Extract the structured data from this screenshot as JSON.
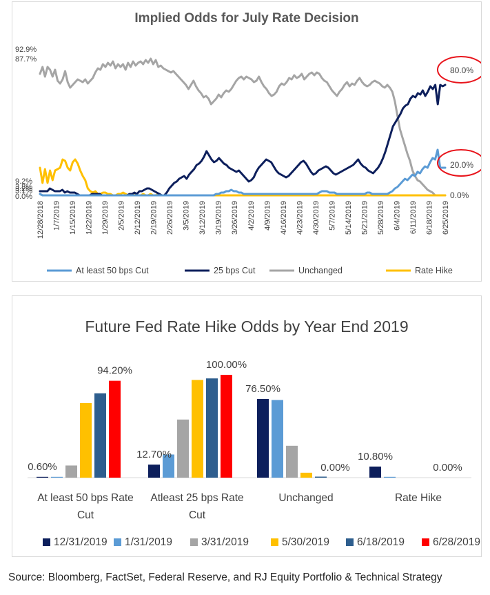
{
  "source": "Source: Bloomberg, FactSet, Federal Reserve, and RJ Equity Portfolio & Technical Strategy",
  "chart_data": [
    {
      "type": "line",
      "title": "Implied Odds for July Rate Decision",
      "xlabel": "",
      "ylabel": "",
      "ylim": [
        0,
        100
      ],
      "x_tick_labels": [
        "12/28/2018",
        "1/7/2019",
        "1/15/2019",
        "1/22/2019",
        "1/29/2019",
        "2/5/2019",
        "2/12/2019",
        "2/19/2019",
        "2/26/2019",
        "3/5/2019",
        "3/12/2019",
        "3/19/2019",
        "3/26/2019",
        "4/2/2019",
        "4/9/2019",
        "4/16/2019",
        "4/23/2019",
        "4/30/2019",
        "5/7/2019",
        "5/14/2019",
        "5/21/2019",
        "5/28/2019",
        "6/4/2019",
        "6/11/2019",
        "6/18/2019",
        "6/25/2019"
      ],
      "left_labels": [
        "92.9%",
        "87.7%",
        "9.2%",
        "3.8%",
        "3.2%",
        "3.1%",
        "0.0%"
      ],
      "right_labels": [
        "80.0%",
        "20.0%",
        "0.0%"
      ],
      "legend_position": "bottom",
      "colors": {
        "cut50": "#5b9bd5",
        "cut25": "#0d1f5c",
        "unchanged": "#a5a5a5",
        "hike": "#ffc000",
        "highlight": "#e8141b"
      },
      "series": [
        {
          "name": "At least 50 bps Cut",
          "values": [
            1,
            0,
            0,
            0,
            0,
            0,
            0,
            0,
            0,
            0,
            0,
            0,
            0,
            0,
            0,
            0,
            0,
            0,
            0,
            0,
            0,
            0,
            0,
            0,
            0,
            0,
            0,
            0,
            0,
            0,
            0,
            0,
            0,
            0,
            0,
            0,
            0,
            0,
            0,
            0,
            0,
            0,
            0,
            0,
            0,
            0,
            0,
            0,
            0,
            0,
            0,
            0,
            0,
            0,
            0,
            0,
            0,
            0,
            0,
            0,
            0,
            0,
            0,
            0,
            0,
            0,
            0,
            0,
            0,
            0,
            1,
            1,
            2,
            2,
            3,
            3,
            4,
            3,
            3,
            2,
            2,
            1,
            1,
            1,
            1,
            1,
            1,
            1,
            1,
            1,
            1,
            1,
            1,
            1,
            1,
            1,
            1,
            1,
            1,
            1,
            1,
            1,
            1,
            1,
            1,
            1,
            1,
            1,
            1,
            1,
            1,
            2,
            3,
            3,
            3,
            2,
            2,
            2,
            1,
            1,
            1,
            1,
            1,
            1,
            1,
            1,
            1,
            1,
            1,
            1,
            2,
            2,
            1,
            1,
            1,
            1,
            1,
            1,
            1,
            2,
            3,
            5,
            6,
            8,
            10,
            12,
            11,
            13,
            15,
            14,
            17,
            16,
            19,
            21,
            20,
            24,
            27,
            26,
            33,
            20,
            20,
            20
          ]
        },
        {
          "name": "25 bps Cut",
          "values": [
            3,
            3,
            3,
            3,
            5,
            4,
            3,
            3,
            3,
            4,
            2,
            3,
            2,
            2,
            2,
            1,
            0,
            0,
            0,
            0,
            0,
            1,
            1,
            1,
            1,
            0,
            0,
            0,
            0,
            0,
            0,
            0,
            0,
            0,
            0,
            0,
            1,
            1,
            2,
            1,
            3,
            3,
            4,
            5,
            5,
            4,
            3,
            2,
            1,
            0,
            0,
            2,
            5,
            7,
            9,
            10,
            12,
            13,
            14,
            12,
            15,
            17,
            19,
            22,
            23,
            25,
            28,
            32,
            29,
            26,
            24,
            25,
            27,
            25,
            23,
            22,
            20,
            19,
            18,
            17,
            18,
            16,
            14,
            12,
            10,
            11,
            13,
            17,
            20,
            22,
            24,
            26,
            25,
            24,
            21,
            18,
            16,
            15,
            14,
            13,
            14,
            16,
            18,
            20,
            22,
            24,
            25,
            23,
            20,
            17,
            15,
            16,
            18,
            19,
            20,
            21,
            20,
            18,
            16,
            15,
            16,
            17,
            18,
            19,
            20,
            21,
            22,
            24,
            26,
            23,
            21,
            20,
            18,
            17,
            16,
            18,
            20,
            23,
            27,
            32,
            38,
            44,
            50,
            53,
            56,
            59,
            63,
            65,
            66,
            70,
            72,
            71,
            74,
            73,
            76,
            72,
            75,
            79,
            77,
            80,
            66,
            80,
            79,
            80
          ]
        },
        {
          "name": "Unchanged",
          "values": [
            88,
            93,
            86,
            93,
            91,
            86,
            91,
            83,
            81,
            84,
            90,
            82,
            78,
            80,
            82,
            84,
            83,
            82,
            84,
            81,
            83,
            85,
            89,
            92,
            91,
            95,
            93,
            96,
            94,
            97,
            92,
            95,
            93,
            95,
            91,
            96,
            93,
            97,
            94,
            96,
            97,
            95,
            98,
            96,
            99,
            95,
            98,
            93,
            94,
            92,
            91,
            90,
            89,
            90,
            88,
            86,
            84,
            82,
            80,
            77,
            80,
            83,
            79,
            76,
            74,
            71,
            72,
            70,
            66,
            68,
            70,
            73,
            71,
            74,
            76,
            75,
            77,
            80,
            83,
            85,
            86,
            84,
            86,
            85,
            84,
            82,
            83,
            86,
            82,
            79,
            77,
            74,
            72,
            73,
            75,
            79,
            81,
            80,
            82,
            85,
            84,
            87,
            85,
            86,
            88,
            84,
            86,
            88,
            89,
            87,
            89,
            88,
            85,
            83,
            82,
            79,
            76,
            74,
            72,
            75,
            77,
            80,
            82,
            79,
            81,
            80,
            83,
            85,
            82,
            80,
            79,
            80,
            82,
            83,
            82,
            81,
            79,
            78,
            80,
            78,
            75,
            68,
            58,
            48,
            42,
            36,
            30,
            25,
            18,
            14,
            11,
            10,
            8,
            6,
            4,
            3,
            2,
            0,
            0,
            0,
            0,
            0
          ]
        },
        {
          "name": "Rate Hike",
          "values": [
            20,
            9,
            19,
            9,
            18,
            11,
            18,
            19,
            20,
            26,
            25,
            20,
            18,
            24,
            26,
            23,
            18,
            14,
            11,
            5,
            3,
            2,
            3,
            1,
            1,
            2,
            2,
            1,
            1,
            0,
            0,
            1,
            1,
            2,
            1,
            0,
            0,
            1,
            1,
            0,
            0,
            1,
            0,
            0,
            1,
            0,
            0,
            1,
            0,
            0,
            0,
            0,
            0,
            0,
            0,
            0,
            0,
            0,
            0,
            0,
            0,
            0,
            0,
            0,
            0,
            0,
            0,
            0,
            0,
            0,
            0,
            0,
            0,
            0,
            0,
            0,
            0,
            0,
            0,
            0,
            0,
            0,
            0,
            0,
            0,
            0,
            0,
            0,
            0,
            0,
            0,
            0,
            0,
            0,
            0,
            0,
            0,
            0,
            0,
            0,
            0,
            0,
            0,
            0,
            0,
            0,
            0,
            0,
            0,
            0,
            0,
            0,
            0,
            0,
            0,
            0,
            0,
            0,
            0,
            0,
            0,
            0,
            0,
            0,
            0,
            0,
            0,
            0,
            0,
            0,
            0,
            0,
            0,
            0,
            0,
            0,
            0,
            0,
            0,
            0,
            0,
            0,
            0,
            0,
            0,
            0,
            0,
            0,
            0,
            0,
            0,
            0,
            0,
            0,
            0,
            0,
            0,
            0,
            0,
            0,
            0,
            0
          ]
        }
      ]
    },
    {
      "type": "bar",
      "title": "Future Fed Rate Hike Odds by Year End 2019",
      "xlabel": "",
      "ylabel": "",
      "ylim": [
        0,
        100
      ],
      "legend_position": "bottom",
      "categories": [
        [
          "At least 50 bps Rate",
          "Cut"
        ],
        [
          "Atleast 25 bps Rate",
          "Cut"
        ],
        [
          "Unchanged"
        ],
        [
          "Rate Hike"
        ]
      ],
      "annotations": [
        {
          "text": "0.60%",
          "category": 0,
          "series": 0
        },
        {
          "text": "94.20%",
          "category": 0,
          "series": 5
        },
        {
          "text": "12.70%",
          "category": 1,
          "series": 0
        },
        {
          "text": "100.00%",
          "category": 1,
          "series": 5
        },
        {
          "text": "76.50%",
          "category": 2,
          "series": 0
        },
        {
          "text": "0.00%",
          "category": 2,
          "series": 5
        },
        {
          "text": "10.80%",
          "category": 3,
          "series": 0
        },
        {
          "text": "0.00%",
          "category": 3,
          "series": 5
        }
      ],
      "series": [
        {
          "name": "12/31/2019",
          "color": "#0d1f5c",
          "values": [
            0.6,
            12.7,
            76.5,
            10.8
          ]
        },
        {
          "name": "1/31/2019",
          "color": "#5b9bd5",
          "values": [
            0.6,
            22.5,
            75.5,
            0.8
          ]
        },
        {
          "name": "3/31/2019",
          "color": "#a5a5a5",
          "values": [
            11.8,
            56.5,
            31.0,
            0.0
          ]
        },
        {
          "name": "5/30/2019",
          "color": "#ffc000",
          "values": [
            72.5,
            95.0,
            4.8,
            0.0
          ]
        },
        {
          "name": "6/18/2019",
          "color": "#2e5e8e",
          "values": [
            82.0,
            96.5,
            1.0,
            0.0
          ]
        },
        {
          "name": "6/28/2019",
          "color": "#ff0000",
          "values": [
            94.2,
            100.0,
            0.0,
            0.0
          ]
        }
      ]
    }
  ]
}
